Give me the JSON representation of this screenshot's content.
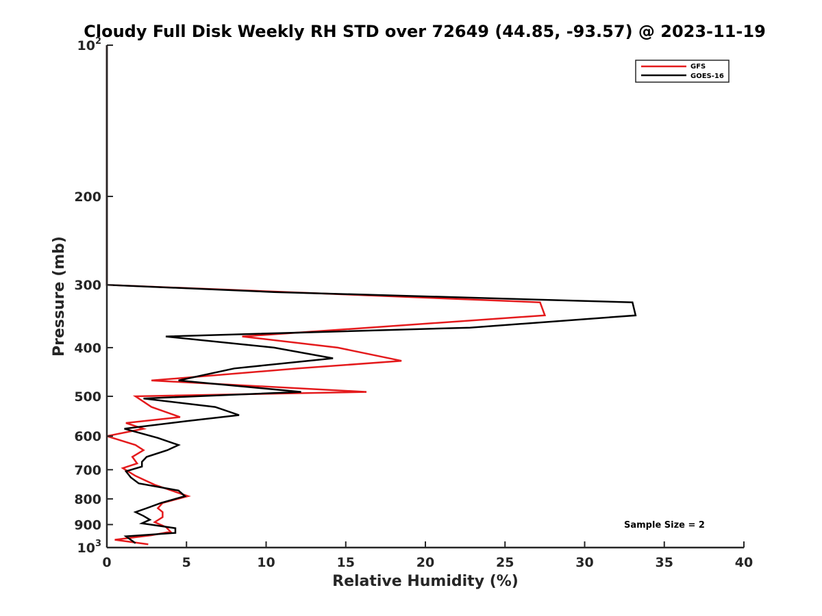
{
  "chart_data": {
    "type": "line",
    "title": "Cloudy Full Disk Weekly RH STD over 72649 (44.85, -93.57) @ 2023-11-19",
    "xlabel": "Relative Humidity (%)",
    "ylabel": "Pressure (mb)",
    "xlim": [
      0,
      40
    ],
    "ylim": [
      100,
      1000
    ],
    "y_scale": "log",
    "y_reversed": true,
    "x_ticks": [
      "0",
      "5",
      "10",
      "15",
      "20",
      "25",
      "30",
      "35",
      "40"
    ],
    "y_ticks": [
      {
        "value": 100,
        "base": "10",
        "exp": "2"
      },
      {
        "value": 200,
        "label": "200"
      },
      {
        "value": 300,
        "label": "300"
      },
      {
        "value": 400,
        "label": "400"
      },
      {
        "value": 500,
        "label": "500"
      },
      {
        "value": 600,
        "label": "600"
      },
      {
        "value": 700,
        "label": "700"
      },
      {
        "value": 800,
        "label": "800"
      },
      {
        "value": 900,
        "label": "900"
      },
      {
        "value": 1000,
        "base": "10",
        "exp": "3"
      }
    ],
    "legend_position": "top-right",
    "annotation": "Sample Size = 2",
    "series": [
      {
        "name": "GFS",
        "color": "#e41a1c",
        "points": [
          [
            0,
            100
          ],
          [
            0,
            200
          ],
          [
            0,
            300
          ],
          [
            27.2,
            325
          ],
          [
            27.5,
            345
          ],
          [
            8.5,
            380
          ],
          [
            14.5,
            400
          ],
          [
            18.5,
            425
          ],
          [
            12.0,
            440
          ],
          [
            2.8,
            465
          ],
          [
            16.3,
            490
          ],
          [
            1.8,
            500
          ],
          [
            2.8,
            525
          ],
          [
            4.6,
            550
          ],
          [
            1.2,
            565
          ],
          [
            2.3,
            580
          ],
          [
            0,
            600
          ],
          [
            1.8,
            625
          ],
          [
            2.3,
            640
          ],
          [
            1.6,
            660
          ],
          [
            1.9,
            680
          ],
          [
            1.0,
            695
          ],
          [
            1.8,
            720
          ],
          [
            3.0,
            750
          ],
          [
            5.1,
            790
          ],
          [
            3.5,
            815
          ],
          [
            3.2,
            835
          ],
          [
            3.5,
            850
          ],
          [
            3.5,
            870
          ],
          [
            3.0,
            890
          ],
          [
            3.7,
            910
          ],
          [
            4.0,
            930
          ],
          [
            2.8,
            945
          ],
          [
            0.5,
            965
          ],
          [
            2.6,
            985
          ]
        ]
      },
      {
        "name": "GOES-16",
        "color": "#000000",
        "points": [
          [
            0,
            100
          ],
          [
            0,
            200
          ],
          [
            0,
            300
          ],
          [
            10.5,
            310
          ],
          [
            33.0,
            325
          ],
          [
            33.2,
            345
          ],
          [
            22.8,
            365
          ],
          [
            3.7,
            380
          ],
          [
            10.5,
            400
          ],
          [
            14.2,
            420
          ],
          [
            8.0,
            440
          ],
          [
            4.5,
            465
          ],
          [
            12.2,
            490
          ],
          [
            2.3,
            505
          ],
          [
            6.8,
            525
          ],
          [
            8.3,
            545
          ],
          [
            5.0,
            560
          ],
          [
            1.1,
            580
          ],
          [
            3.2,
            605
          ],
          [
            4.5,
            625
          ],
          [
            3.8,
            640
          ],
          [
            2.5,
            660
          ],
          [
            2.2,
            675
          ],
          [
            2.2,
            690
          ],
          [
            1.2,
            705
          ],
          [
            1.5,
            725
          ],
          [
            2.0,
            745
          ],
          [
            4.5,
            770
          ],
          [
            4.9,
            790
          ],
          [
            3.4,
            815
          ],
          [
            2.5,
            835
          ],
          [
            1.8,
            850
          ],
          [
            2.3,
            865
          ],
          [
            2.7,
            880
          ],
          [
            2.2,
            895
          ],
          [
            4.3,
            915
          ],
          [
            4.3,
            935
          ],
          [
            1.2,
            950
          ],
          [
            1.5,
            965
          ],
          [
            1.8,
            980
          ]
        ]
      }
    ]
  }
}
